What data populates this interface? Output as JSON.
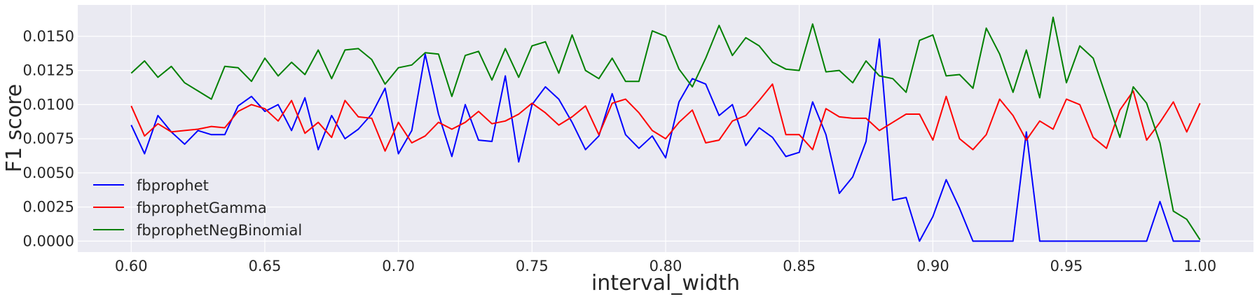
{
  "chart_data": {
    "type": "line",
    "title": "",
    "xlabel": "interval_width",
    "ylabel": "F1 score",
    "xlim": [
      0.58,
      1.02
    ],
    "ylim": [
      -0.0008,
      0.0173
    ],
    "grid": true,
    "legend_position": "lower-left",
    "x_ticks": [
      "0.60",
      "0.65",
      "0.70",
      "0.75",
      "0.80",
      "0.85",
      "0.90",
      "0.95",
      "1.00"
    ],
    "y_ticks": [
      "0.0000",
      "0.0025",
      "0.0050",
      "0.0075",
      "0.0100",
      "0.0125",
      "0.0150"
    ],
    "x": [
      0.6,
      0.605,
      0.61,
      0.615,
      0.62,
      0.625,
      0.63,
      0.635,
      0.64,
      0.645,
      0.65,
      0.655,
      0.66,
      0.665,
      0.67,
      0.675,
      0.68,
      0.685,
      0.69,
      0.695,
      0.7,
      0.705,
      0.71,
      0.715,
      0.72,
      0.725,
      0.73,
      0.735,
      0.74,
      0.745,
      0.75,
      0.755,
      0.76,
      0.765,
      0.77,
      0.775,
      0.78,
      0.785,
      0.79,
      0.795,
      0.8,
      0.805,
      0.81,
      0.815,
      0.82,
      0.825,
      0.83,
      0.835,
      0.84,
      0.845,
      0.85,
      0.855,
      0.86,
      0.865,
      0.87,
      0.875,
      0.88,
      0.885,
      0.89,
      0.895,
      0.9,
      0.905,
      0.91,
      0.915,
      0.92,
      0.925,
      0.93,
      0.935,
      0.94,
      0.945,
      0.95,
      0.955,
      0.96,
      0.965,
      0.97,
      0.975,
      0.98,
      0.985,
      0.99,
      0.995,
      1.0
    ],
    "series": [
      {
        "name": "fbprophet",
        "color": "#0000ff",
        "values": [
          0.0085,
          0.0064,
          0.0092,
          0.008,
          0.0071,
          0.0081,
          0.0078,
          0.0078,
          0.0099,
          0.0106,
          0.0095,
          0.01,
          0.0081,
          0.0105,
          0.0067,
          0.0092,
          0.0075,
          0.0082,
          0.0093,
          0.0112,
          0.0064,
          0.0081,
          0.0137,
          0.0093,
          0.0062,
          0.01,
          0.0074,
          0.0073,
          0.0121,
          0.0058,
          0.01,
          0.0113,
          0.0104,
          0.0087,
          0.0067,
          0.0077,
          0.0108,
          0.0078,
          0.0068,
          0.0077,
          0.0061,
          0.0102,
          0.0119,
          0.0115,
          0.0092,
          0.01,
          0.007,
          0.0083,
          0.0076,
          0.0062,
          0.0065,
          0.0102,
          0.0078,
          0.0035,
          0.0047,
          0.0073,
          0.0148,
          0.003,
          0.0032,
          0.0,
          0.0018,
          0.0045,
          0.0024,
          0.0,
          0.0,
          0.0,
          0.0,
          0.008,
          0.0,
          0.0,
          0.0,
          0.0,
          0.0,
          0.0,
          0.0,
          0.0,
          0.0,
          0.0029,
          0.0,
          0.0,
          0.0
        ]
      },
      {
        "name": "fbprophetGamma",
        "color": "#ff0000",
        "values": [
          0.0099,
          0.0077,
          0.0086,
          0.008,
          0.0081,
          0.0082,
          0.0084,
          0.0083,
          0.0095,
          0.01,
          0.0097,
          0.0088,
          0.0103,
          0.0079,
          0.0087,
          0.0076,
          0.0103,
          0.0091,
          0.009,
          0.0066,
          0.0087,
          0.0072,
          0.0077,
          0.0087,
          0.0082,
          0.0087,
          0.0095,
          0.0086,
          0.0088,
          0.0093,
          0.0101,
          0.0094,
          0.0085,
          0.0091,
          0.0099,
          0.0078,
          0.0101,
          0.0104,
          0.0094,
          0.0081,
          0.0075,
          0.0087,
          0.0096,
          0.0072,
          0.0074,
          0.0088,
          0.0092,
          0.0103,
          0.0115,
          0.0078,
          0.0078,
          0.0067,
          0.0097,
          0.0091,
          0.009,
          0.009,
          0.0081,
          0.0087,
          0.0093,
          0.0093,
          0.0074,
          0.0106,
          0.0075,
          0.0067,
          0.0078,
          0.0104,
          0.0092,
          0.0074,
          0.0088,
          0.0082,
          0.0104,
          0.01,
          0.0076,
          0.0068,
          0.0096,
          0.011,
          0.0074,
          0.0087,
          0.0102,
          0.008,
          0.0101
        ]
      },
      {
        "name": "fbprophetNegBinomial",
        "color": "#008000",
        "values": [
          0.0123,
          0.0132,
          0.012,
          0.0128,
          0.0116,
          0.011,
          0.0104,
          0.0128,
          0.0127,
          0.0117,
          0.0134,
          0.0121,
          0.0131,
          0.0122,
          0.014,
          0.0119,
          0.014,
          0.0141,
          0.0133,
          0.0115,
          0.0127,
          0.0129,
          0.0138,
          0.0137,
          0.0106,
          0.0136,
          0.0139,
          0.0118,
          0.0141,
          0.012,
          0.0143,
          0.0146,
          0.0123,
          0.0151,
          0.0125,
          0.0119,
          0.0134,
          0.0117,
          0.0117,
          0.0154,
          0.015,
          0.0126,
          0.0113,
          0.0134,
          0.0158,
          0.0136,
          0.0149,
          0.0143,
          0.0131,
          0.0126,
          0.0125,
          0.0159,
          0.0124,
          0.0125,
          0.0116,
          0.0132,
          0.0121,
          0.0119,
          0.0109,
          0.0147,
          0.0151,
          0.0121,
          0.0122,
          0.0112,
          0.0156,
          0.0137,
          0.0109,
          0.014,
          0.0105,
          0.0164,
          0.0116,
          0.0143,
          0.0134,
          0.0105,
          0.0076,
          0.0113,
          0.0101,
          0.0072,
          0.0022,
          0.0016,
          0.0001
        ]
      }
    ]
  }
}
